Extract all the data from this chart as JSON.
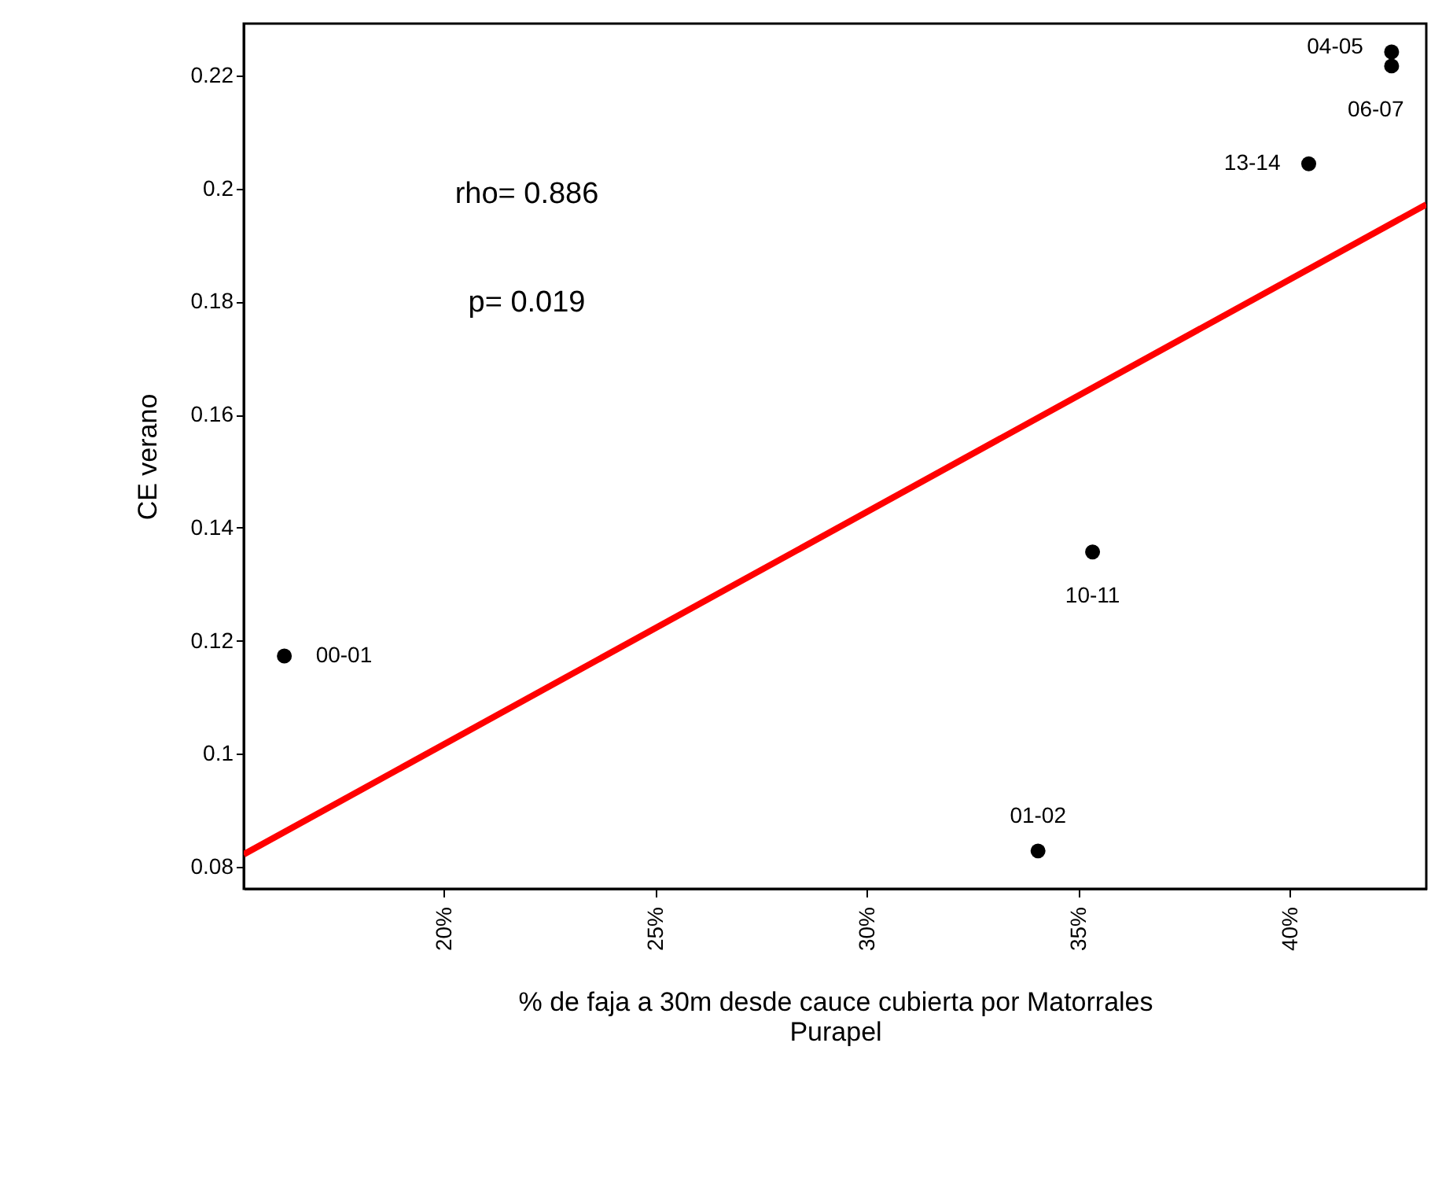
{
  "chart_data": {
    "type": "scatter",
    "xlabel": "% de faja a 30m desde cauce cubierta por Matorrales\nPurapel",
    "ylabel": "CE verano",
    "series": [
      {
        "color": "#000000",
        "marker": "circle",
        "x": [
          16.22,
          34.04,
          35.33,
          40.44,
          42.4,
          42.4
        ],
        "values": [
          0.1173,
          0.0828,
          0.1357,
          0.2044,
          0.2242,
          0.2217
        ]
      },
      {
        "type": "line",
        "marker": "none",
        "line_style": "solid",
        "color": "#ff0000",
        "x": [
          15.26,
          43.22
        ],
        "values": [
          0.0822,
          0.1972
        ]
      }
    ],
    "annotations": [
      {
        "text": "00-01",
        "x": 16.22,
        "y": 0.1173
      },
      {
        "text": "01-02",
        "x": 34.04,
        "y": 0.0828
      },
      {
        "text": "10-11",
        "x": 35.33,
        "y": 0.1357
      },
      {
        "text": "13-14",
        "x": 40.44,
        "y": 0.2044
      },
      {
        "text": "04-05",
        "x": 42.4,
        "y": 0.2242
      },
      {
        "text": "06-07",
        "x": 42.4,
        "y": 0.2217
      },
      "rho= 0.886",
      "p= 0.019"
    ],
    "xlim": [
      15.26,
      43.22
    ],
    "ylim": [
      0.0761,
      0.2292
    ],
    "xticks": [
      {
        "value": 20,
        "label": "20%"
      },
      {
        "value": 25,
        "label": "25%"
      },
      {
        "value": 30,
        "label": "30%"
      },
      {
        "value": 35,
        "label": "35%"
      },
      {
        "value": 40,
        "label": "40%"
      }
    ],
    "yticks": [
      0.08,
      0.1,
      0.12,
      0.14,
      0.16,
      0.18,
      0.2,
      0.22
    ],
    "grid": false
  }
}
